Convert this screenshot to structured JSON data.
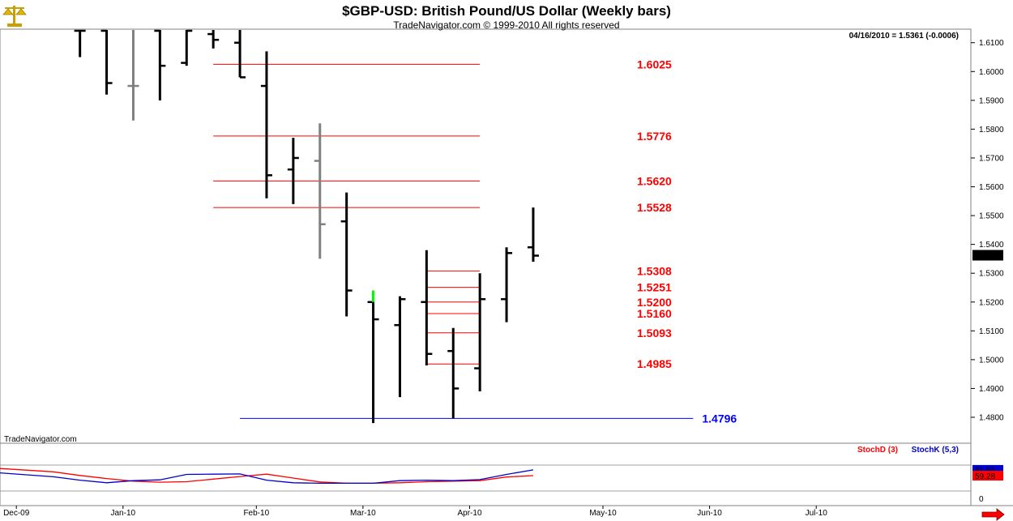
{
  "header": {
    "title": "$GBP-USD:  British Pound/US Dollar  (Weekly bars)",
    "copyright": "TradeNavigator.com © 1999-2010 All rights reserved",
    "last_quote": "04/16/2010 = 1.5361 (-0.0006)",
    "watermark": "TradeNavigator.com"
  },
  "icons": {
    "logo": "gold-scales-icon",
    "scroll": "right-arrow-icon"
  },
  "colors": {
    "bar": "#000000",
    "bar_gray": "#808080",
    "bar_green": "#00ff00",
    "level_red": "#ff0000",
    "level_blue": "#0000ff",
    "stoch_d": "#ff0000",
    "stoch_k": "#0000cc"
  },
  "chart_data": [
    {
      "type": "ohlc",
      "title": "$GBP-USD:  British Pound/US Dollar  (Weekly bars)",
      "y_ticks": [
        "1.4800",
        "1.4900",
        "1.5000",
        "1.5100",
        "1.5200",
        "1.5300",
        "1.5400",
        "1.5500",
        "1.5600",
        "1.5700",
        "1.5800",
        "1.5900",
        "1.6000",
        "1.6100"
      ],
      "ylim": [
        1.477,
        1.616
      ],
      "x_ticks": [
        "Dec-09",
        "Jan-10",
        "Feb-10",
        "Mar-10",
        "Apr-10",
        "May-10",
        "Jun-10",
        "Jul-10"
      ],
      "x_tick_pos": [
        0,
        4,
        9,
        13,
        17,
        22,
        26,
        30
      ],
      "last_price_label": "1.5361",
      "bars": [
        {
          "w": 2.4,
          "o": 1.617,
          "h": 1.617,
          "l": 1.605,
          "c": 1.617,
          "color": "black"
        },
        {
          "w": 3.4,
          "o": 1.617,
          "h": 1.617,
          "l": 1.592,
          "c": 1.596,
          "color": "black"
        },
        {
          "w": 4.4,
          "o": 1.595,
          "h": 1.617,
          "l": 1.583,
          "c": 1.595,
          "color": "gray"
        },
        {
          "w": 5.4,
          "o": 1.615,
          "h": 1.617,
          "l": 1.59,
          "c": 1.602,
          "color": "black"
        },
        {
          "w": 6.4,
          "o": 1.603,
          "h": 1.617,
          "l": 1.602,
          "c": 1.615,
          "color": "black"
        },
        {
          "w": 7.4,
          "o": 1.613,
          "h": 1.617,
          "l": 1.608,
          "c": 1.611,
          "color": "black"
        },
        {
          "w": 8.4,
          "o": 1.61,
          "h": 1.617,
          "l": 1.598,
          "c": 1.598,
          "color": "black"
        },
        {
          "w": 9.4,
          "o": 1.595,
          "h": 1.607,
          "l": 1.556,
          "c": 1.564,
          "color": "black"
        },
        {
          "w": 10.4,
          "o": 1.566,
          "h": 1.577,
          "l": 1.554,
          "c": 1.57,
          "color": "black"
        },
        {
          "w": 11.4,
          "o": 1.569,
          "h": 1.582,
          "l": 1.535,
          "c": 1.547,
          "color": "gray"
        },
        {
          "w": 12.4,
          "o": 1.548,
          "h": 1.558,
          "l": 1.515,
          "c": 1.524,
          "color": "black"
        },
        {
          "w": 13.4,
          "o": 1.52,
          "h": 1.524,
          "l": 1.478,
          "c": 1.514,
          "color": "black"
        },
        {
          "w": 14.4,
          "o": 1.512,
          "h": 1.522,
          "l": 1.487,
          "c": 1.521,
          "color": "black"
        },
        {
          "w": 15.4,
          "o": 1.52,
          "h": 1.538,
          "l": 1.498,
          "c": 1.502,
          "color": "black"
        },
        {
          "w": 16.4,
          "o": 1.503,
          "h": 1.511,
          "l": 1.4796,
          "c": 1.49,
          "color": "black"
        },
        {
          "w": 17.4,
          "o": 1.497,
          "h": 1.53,
          "l": 1.489,
          "c": 1.521,
          "color": "black"
        },
        {
          "w": 18.4,
          "o": 1.521,
          "h": 1.539,
          "l": 1.513,
          "c": 1.537,
          "color": "black"
        },
        {
          "w": 19.4,
          "o": 1.539,
          "h": 1.5528,
          "l": 1.534,
          "c": 1.5361,
          "color": "black"
        }
      ],
      "green_tick": {
        "w": 13.4,
        "high": 1.524,
        "low": 1.52
      },
      "levels": [
        {
          "value": 1.6025,
          "label": "1.6025",
          "from_w": 7.4,
          "to_w": 17.4,
          "color": "red"
        },
        {
          "value": 1.5776,
          "label": "1.5776",
          "from_w": 7.4,
          "to_w": 17.4,
          "color": "red"
        },
        {
          "value": 1.562,
          "label": "1.5620",
          "from_w": 7.4,
          "to_w": 17.4,
          "color": "red"
        },
        {
          "value": 1.5528,
          "label": "1.5528",
          "from_w": 7.4,
          "to_w": 17.4,
          "color": "red"
        },
        {
          "value": 1.5308,
          "label": "1.5308",
          "from_w": 15.4,
          "to_w": 17.4,
          "color": "red"
        },
        {
          "value": 1.5251,
          "label": "1.5251",
          "from_w": 15.4,
          "to_w": 17.4,
          "color": "red"
        },
        {
          "value": 1.52,
          "label": "1.5200",
          "from_w": 15.4,
          "to_w": 17.4,
          "color": "red"
        },
        {
          "value": 1.516,
          "label": "1.5160",
          "from_w": 15.4,
          "to_w": 17.4,
          "color": "red"
        },
        {
          "value": 1.5093,
          "label": "1.5093",
          "from_w": 15.4,
          "to_w": 17.4,
          "color": "red"
        },
        {
          "value": 1.4985,
          "label": "1.4985",
          "from_w": 15.4,
          "to_w": 17.4,
          "color": "red"
        },
        {
          "value": 1.4796,
          "label": "1.4796",
          "from_w": 8.4,
          "to_w": 25.4,
          "color": "blue"
        }
      ]
    },
    {
      "type": "line",
      "title": "Stochastic",
      "ylim": [
        0,
        100
      ],
      "y_ticks": [
        "0"
      ],
      "series": [
        {
          "name": "StochD (3)",
          "color": "red",
          "x": [
            -0.6,
            1.4,
            2.4,
            3.4,
            4.4,
            5.4,
            6.4,
            7.4,
            8.4,
            9.4,
            10.4,
            11.4,
            12.4,
            13.4,
            14.4,
            15.4,
            16.4,
            17.4,
            18.4,
            19.4
          ],
          "values": [
            87,
            74,
            60,
            48,
            38,
            34,
            36,
            46,
            56,
            65,
            50,
            35,
            30,
            30,
            32,
            36,
            38,
            40,
            54,
            59.28
          ]
        },
        {
          "name": "StochK (5,3)",
          "color": "blue",
          "x": [
            -0.6,
            1.4,
            2.4,
            3.4,
            4.4,
            5.4,
            6.4,
            7.4,
            8.4,
            9.4,
            10.4,
            11.4,
            12.4,
            13.4,
            14.4,
            15.4,
            16.4,
            17.4,
            18.4,
            19.4
          ],
          "values": [
            70,
            55,
            42,
            32,
            40,
            43,
            64,
            65,
            66,
            42,
            32,
            30,
            30,
            30,
            40,
            42,
            40,
            44,
            64,
            81.56
          ]
        }
      ],
      "last_labels": [
        "81.56",
        "59.28"
      ]
    }
  ]
}
